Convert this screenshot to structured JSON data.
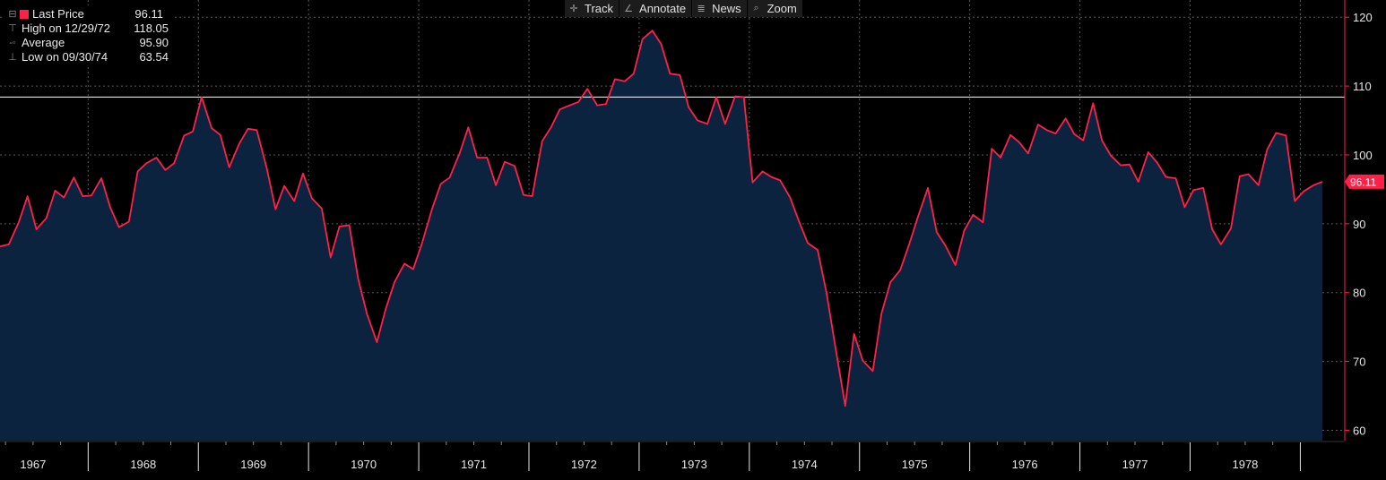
{
  "toolbar": {
    "track": "Track",
    "annotate": "Annotate",
    "news": "News",
    "zoom": "Zoom"
  },
  "legend": {
    "last_price_label": "Last Price",
    "last_price_value": "96.11",
    "high_label": "High on 12/29/72",
    "high_value": "118.05",
    "average_label": "Average",
    "average_value": "95.90",
    "low_label": "Low on 09/30/74",
    "low_value": "63.54"
  },
  "colors": {
    "line": "#ff2147",
    "fill": "#0c2340",
    "background": "#000000",
    "grid": "#5a5a5a",
    "reference": "#ffffff"
  },
  "chart_data": {
    "type": "area",
    "y_axis_side": "right",
    "ylim": [
      58.5,
      122.5
    ],
    "y_ticks": [
      60,
      70,
      80,
      90,
      100,
      110,
      120
    ],
    "x_range": [
      1966.7,
      1978.7
    ],
    "x_tick_labels": [
      "1967",
      "1968",
      "1969",
      "1970",
      "1971",
      "1972",
      "1973",
      "1974",
      "1975",
      "1976",
      "1977",
      "1978"
    ],
    "reference_line": 108.4,
    "last_value_label": "96.11",
    "grid": true,
    "series": [
      {
        "values": [
          [
            1966.7,
            86.7
          ],
          [
            1966.78,
            87.0
          ],
          [
            1966.87,
            90.2
          ],
          [
            1966.95,
            94.0
          ],
          [
            1967.03,
            89.2
          ],
          [
            1967.12,
            90.8
          ],
          [
            1967.2,
            94.8
          ],
          [
            1967.28,
            93.8
          ],
          [
            1967.37,
            96.7
          ],
          [
            1967.45,
            94.0
          ],
          [
            1967.53,
            94.1
          ],
          [
            1967.62,
            96.6
          ],
          [
            1967.7,
            92.4
          ],
          [
            1967.78,
            89.5
          ],
          [
            1967.87,
            90.3
          ],
          [
            1967.95,
            97.6
          ],
          [
            1968.03,
            98.8
          ],
          [
            1968.12,
            99.6
          ],
          [
            1968.2,
            97.8
          ],
          [
            1968.28,
            98.8
          ],
          [
            1968.37,
            102.8
          ],
          [
            1968.45,
            103.4
          ],
          [
            1968.53,
            108.4
          ],
          [
            1968.62,
            103.9
          ],
          [
            1968.7,
            102.9
          ],
          [
            1968.78,
            98.2
          ],
          [
            1968.87,
            101.6
          ],
          [
            1968.95,
            103.8
          ],
          [
            1969.03,
            103.6
          ],
          [
            1969.12,
            98.1
          ],
          [
            1969.2,
            92.1
          ],
          [
            1969.28,
            95.5
          ],
          [
            1969.37,
            93.3
          ],
          [
            1969.45,
            97.3
          ],
          [
            1969.53,
            93.7
          ],
          [
            1969.62,
            92.2
          ],
          [
            1969.7,
            85.1
          ],
          [
            1969.78,
            89.6
          ],
          [
            1969.87,
            89.8
          ],
          [
            1969.95,
            82.0
          ],
          [
            1970.03,
            76.9
          ],
          [
            1970.12,
            72.8
          ],
          [
            1970.2,
            77.6
          ],
          [
            1970.28,
            81.5
          ],
          [
            1970.37,
            84.2
          ],
          [
            1970.45,
            83.4
          ],
          [
            1970.53,
            87.2
          ],
          [
            1970.62,
            92.1
          ],
          [
            1970.7,
            95.8
          ],
          [
            1970.78,
            96.7
          ],
          [
            1970.87,
            100.2
          ],
          [
            1970.95,
            104.0
          ],
          [
            1971.03,
            99.6
          ],
          [
            1971.12,
            99.6
          ],
          [
            1971.2,
            95.6
          ],
          [
            1971.28,
            99.0
          ],
          [
            1971.37,
            98.4
          ],
          [
            1971.45,
            94.2
          ],
          [
            1971.53,
            94.0
          ],
          [
            1971.62,
            102.0
          ],
          [
            1971.7,
            104.0
          ],
          [
            1971.78,
            106.6
          ],
          [
            1971.87,
            107.2
          ],
          [
            1971.95,
            107.7
          ],
          [
            1972.03,
            109.6
          ],
          [
            1972.12,
            107.2
          ],
          [
            1972.2,
            107.4
          ],
          [
            1972.28,
            111.0
          ],
          [
            1972.37,
            110.7
          ],
          [
            1972.45,
            111.8
          ],
          [
            1972.53,
            116.8
          ],
          [
            1972.62,
            118.05
          ],
          [
            1972.7,
            116.1
          ],
          [
            1972.78,
            111.8
          ],
          [
            1972.87,
            111.6
          ],
          [
            1972.95,
            106.9
          ],
          [
            1973.03,
            105.0
          ],
          [
            1973.12,
            104.5
          ],
          [
            1973.2,
            108.4
          ],
          [
            1973.28,
            104.5
          ],
          [
            1973.37,
            108.5
          ],
          [
            1973.45,
            108.4
          ],
          [
            1973.53,
            96.0
          ],
          [
            1973.62,
            97.6
          ],
          [
            1973.7,
            96.8
          ],
          [
            1973.78,
            96.3
          ],
          [
            1973.87,
            93.8
          ],
          [
            1973.95,
            90.4
          ],
          [
            1974.03,
            87.2
          ],
          [
            1974.12,
            86.2
          ],
          [
            1974.2,
            80.0
          ],
          [
            1974.28,
            72.2
          ],
          [
            1974.37,
            63.54
          ],
          [
            1974.45,
            74.0
          ],
          [
            1974.53,
            70.1
          ],
          [
            1974.62,
            68.6
          ],
          [
            1974.7,
            77.0
          ],
          [
            1974.78,
            81.5
          ],
          [
            1974.87,
            83.3
          ],
          [
            1974.95,
            87.0
          ],
          [
            1975.03,
            91.0
          ],
          [
            1975.12,
            95.2
          ],
          [
            1975.2,
            88.8
          ],
          [
            1975.28,
            86.8
          ],
          [
            1975.37,
            84.0
          ],
          [
            1975.45,
            89.0
          ],
          [
            1975.53,
            91.3
          ],
          [
            1975.62,
            90.2
          ],
          [
            1975.7,
            100.9
          ],
          [
            1975.78,
            99.6
          ],
          [
            1975.87,
            102.9
          ],
          [
            1975.95,
            101.8
          ],
          [
            1976.03,
            100.2
          ],
          [
            1976.12,
            104.4
          ],
          [
            1976.2,
            103.6
          ],
          [
            1976.28,
            103.1
          ],
          [
            1976.37,
            105.3
          ],
          [
            1976.45,
            103.0
          ],
          [
            1976.53,
            102.1
          ],
          [
            1976.62,
            107.5
          ],
          [
            1976.7,
            102.1
          ],
          [
            1976.78,
            99.9
          ],
          [
            1976.87,
            98.5
          ],
          [
            1976.95,
            98.6
          ],
          [
            1977.03,
            96.1
          ],
          [
            1977.12,
            100.4
          ],
          [
            1977.2,
            98.9
          ],
          [
            1977.28,
            96.8
          ],
          [
            1977.37,
            96.6
          ],
          [
            1977.45,
            92.4
          ],
          [
            1977.53,
            94.9
          ],
          [
            1977.62,
            95.2
          ],
          [
            1977.7,
            89.2
          ],
          [
            1977.78,
            87.0
          ],
          [
            1977.87,
            89.3
          ],
          [
            1977.95,
            96.9
          ],
          [
            1978.03,
            97.2
          ],
          [
            1978.12,
            95.6
          ],
          [
            1978.2,
            100.8
          ],
          [
            1978.28,
            103.2
          ],
          [
            1978.37,
            102.8
          ],
          [
            1978.45,
            93.3
          ],
          [
            1978.53,
            94.7
          ],
          [
            1978.62,
            95.6
          ],
          [
            1978.7,
            96.11
          ]
        ]
      }
    ]
  }
}
